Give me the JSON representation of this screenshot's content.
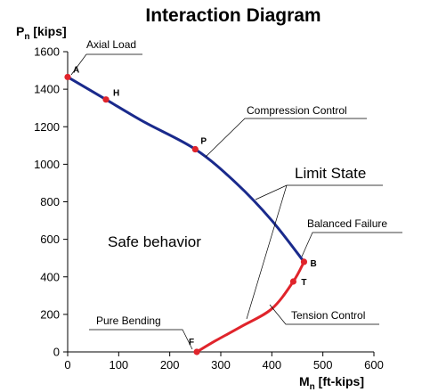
{
  "chart_data": {
    "type": "line",
    "title": "Interaction Diagram",
    "ylabel": {
      "main": "P",
      "sub": "n",
      "unit": " [kips]"
    },
    "xlabel": {
      "main": "M",
      "sub": "n",
      "unit": " [ft-kips]"
    },
    "xlim": [
      0,
      600
    ],
    "ylim": [
      0,
      1600
    ],
    "x_ticks": [
      "0",
      "100",
      "200",
      "300",
      "400",
      "500",
      "600"
    ],
    "y_ticks": [
      "0",
      "200",
      "400",
      "600",
      "800",
      "1000",
      "1200",
      "1400",
      "1600"
    ],
    "grid": false,
    "series": [
      {
        "color": "#1a2a8c",
        "x": [
          0,
          75,
          150,
          250,
          330,
          400,
          463
        ],
        "y": [
          1465,
          1345,
          1225,
          1080,
          900,
          700,
          480
        ]
      },
      {
        "color": "#e0242b",
        "x": [
          463,
          442,
          400,
          340,
          290,
          253
        ],
        "y": [
          480,
          375,
          230,
          135,
          60,
          0
        ]
      }
    ],
    "points": [
      {
        "label": "A",
        "x": 0,
        "y": 1465
      },
      {
        "label": "H",
        "x": 75,
        "y": 1345
      },
      {
        "label": "P",
        "x": 250,
        "y": 1080
      },
      {
        "label": "B",
        "x": 463,
        "y": 480
      },
      {
        "label": "T",
        "x": 442,
        "y": 375
      },
      {
        "label": "F",
        "x": 253,
        "y": 0
      }
    ],
    "annotations": {
      "axial_load": "Axial Load",
      "compression_control": "Compression Control",
      "limit_state": "Limit State",
      "balanced_failure": "Balanced Failure",
      "safe_behavior": "Safe behavior",
      "tension_control": "Tension Control",
      "pure_bending": "Pure Bending"
    },
    "point_color": "#e0242b"
  }
}
